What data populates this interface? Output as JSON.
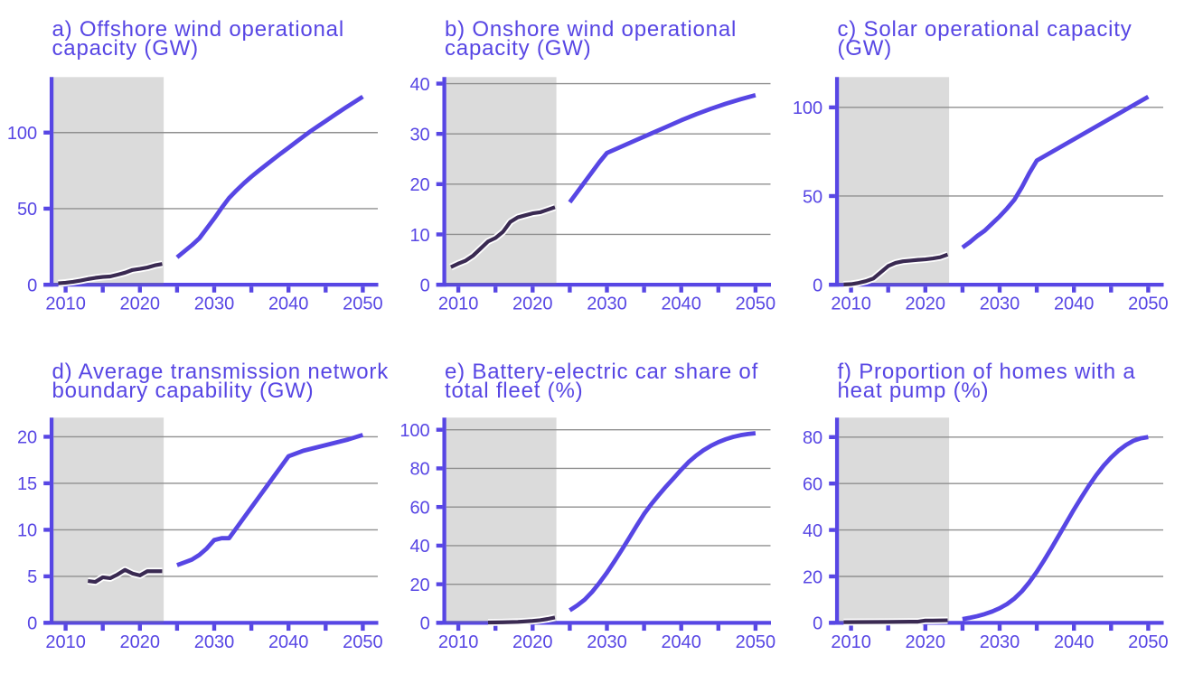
{
  "figure": {
    "background": "#ffffff",
    "description": "Six-panel small-multiples line chart of historical data and future projections, 2010-2050"
  },
  "colors": {
    "accent_purple": "#5746e4",
    "history_line": "#3a2a52",
    "history_casing": "#ffffff",
    "gridline": "#8f8f8f",
    "history_band_grey": "#dcdcdc"
  },
  "chart_data": [
    {
      "id": "a",
      "type": "line",
      "title": "a) Offshore wind operational capacity (GW)",
      "title_line1": "a) Offshore wind operational",
      "title_line2": "capacity (GW)",
      "yticks": [
        0,
        50,
        100
      ],
      "ylim": [
        0,
        136.5
      ],
      "xticks": [
        2010,
        2015,
        2020,
        2025,
        2030,
        2035,
        2040,
        2045,
        2050
      ],
      "xtick_labels": [
        2010,
        2020,
        2030,
        2040,
        2050
      ],
      "xlim": [
        2008.1,
        2052.1
      ],
      "history_band": [
        2008.4,
        2023.2
      ],
      "series": [
        {
          "name": "historical",
          "x": [
            2009,
            2010,
            2011,
            2012,
            2013,
            2014,
            2015,
            2016,
            2017,
            2018,
            2019,
            2020,
            2021,
            2022,
            2023
          ],
          "y": [
            0.9,
            1.3,
            1.9,
            2.7,
            3.7,
            4.5,
            5.1,
            5.4,
            6.6,
            7.9,
            9.7,
            10.4,
            11.3,
            12.7,
            13.6
          ]
        },
        {
          "name": "projection",
          "x": [
            2025,
            2026,
            2027,
            2028,
            2029,
            2030,
            2031,
            2032,
            2033,
            2034,
            2035,
            2036,
            2037,
            2038,
            2039,
            2040,
            2041,
            2042,
            2043,
            2044,
            2045,
            2046,
            2047,
            2048,
            2049,
            2050
          ],
          "y": [
            18,
            22,
            26,
            30.5,
            37,
            43.5,
            50.5,
            57,
            62,
            66.7,
            71,
            75,
            78.8,
            82.6,
            86.4,
            90,
            93.7,
            97.4,
            101,
            104.3,
            107.6,
            110.9,
            114.2,
            117.4,
            120.5,
            123.6
          ]
        }
      ]
    },
    {
      "id": "b",
      "type": "line",
      "title": "b) Onshore wind operational capacity (GW)",
      "title_line1": "b) Onshore wind operational",
      "title_line2": "capacity (GW)",
      "yticks": [
        0,
        10,
        20,
        30,
        40
      ],
      "ylim": [
        0,
        41.3
      ],
      "xticks": [
        2010,
        2015,
        2020,
        2025,
        2030,
        2035,
        2040,
        2045,
        2050
      ],
      "xtick_labels": [
        2010,
        2020,
        2030,
        2040,
        2050
      ],
      "xlim": [
        2008.1,
        2052.1
      ],
      "history_band": [
        2008.4,
        2023.2
      ],
      "series": [
        {
          "name": "historical",
          "x": [
            2009,
            2010,
            2011,
            2012,
            2013,
            2014,
            2015,
            2016,
            2017,
            2018,
            2019,
            2020,
            2021,
            2022,
            2023
          ],
          "y": [
            3.5,
            4.2,
            4.8,
            5.8,
            7.2,
            8.6,
            9.3,
            10.5,
            12.5,
            13.4,
            13.8,
            14.2,
            14.4,
            14.9,
            15.4
          ]
        },
        {
          "name": "projection",
          "x": [
            2025,
            2026,
            2027,
            2028,
            2029,
            2030,
            2032,
            2034,
            2036,
            2038,
            2040,
            2042,
            2044,
            2046,
            2048,
            2050
          ],
          "y": [
            16.4,
            18.4,
            20.4,
            22.4,
            24.4,
            26.2,
            27.5,
            28.8,
            30.1,
            31.4,
            32.7,
            33.9,
            35.0,
            36.0,
            36.9,
            37.7
          ]
        }
      ]
    },
    {
      "id": "c",
      "type": "line",
      "title": "c) Solar operational capacity (GW)",
      "title_line1": "c) Solar operational capacity",
      "title_line2": "(GW)",
      "yticks": [
        0,
        50,
        100
      ],
      "ylim": [
        0,
        117.1
      ],
      "xticks": [
        2010,
        2015,
        2020,
        2025,
        2030,
        2035,
        2040,
        2045,
        2050
      ],
      "xtick_labels": [
        2010,
        2020,
        2030,
        2040,
        2050
      ],
      "xlim": [
        2008.1,
        2052.1
      ],
      "history_band": [
        2008.4,
        2023.2
      ],
      "series": [
        {
          "name": "historical",
          "x": [
            2009,
            2010,
            2011,
            2012,
            2013,
            2014,
            2015,
            2016,
            2017,
            2018,
            2019,
            2020,
            2021,
            2022,
            2023
          ],
          "y": [
            0.1,
            0.3,
            1.0,
            2.0,
            3.5,
            7.0,
            10.5,
            12.3,
            13.2,
            13.6,
            14.0,
            14.3,
            14.8,
            15.5,
            17.0
          ]
        },
        {
          "name": "projection",
          "x": [
            2025,
            2026,
            2027,
            2028,
            2029,
            2030,
            2031,
            2032,
            2033,
            2034,
            2035,
            2038,
            2041,
            2044,
            2047,
            2050
          ],
          "y": [
            21,
            24,
            27.5,
            30.5,
            34.5,
            38.5,
            43,
            48,
            55,
            63,
            70,
            77.2,
            84.4,
            91.6,
            98.8,
            106
          ]
        }
      ]
    },
    {
      "id": "d",
      "type": "line",
      "title": "d) Average transmission network boundary capability (GW)",
      "title_line1": "d) Average transmission network",
      "title_line2": "boundary capability (GW)",
      "yticks": [
        0,
        5,
        10,
        15,
        20
      ],
      "ylim": [
        0,
        22.06
      ],
      "xticks": [
        2010,
        2015,
        2020,
        2025,
        2030,
        2035,
        2040,
        2045,
        2050
      ],
      "xtick_labels": [
        2010,
        2020,
        2030,
        2040,
        2050
      ],
      "xlim": [
        2008.1,
        2052.1
      ],
      "history_band": [
        2008.4,
        2023.2
      ],
      "series": [
        {
          "name": "historical",
          "x": [
            2013,
            2014,
            2015,
            2016,
            2017,
            2018,
            2019,
            2020,
            2021,
            2022,
            2023
          ],
          "y": [
            4.5,
            4.4,
            4.9,
            4.8,
            5.2,
            5.7,
            5.3,
            5.1,
            5.55,
            5.55,
            5.55
          ]
        },
        {
          "name": "projection",
          "x": [
            2025,
            2026,
            2027,
            2028,
            2029,
            2030,
            2031,
            2032,
            2033,
            2034,
            2035,
            2036,
            2037,
            2038,
            2039,
            2040,
            2042,
            2044,
            2046,
            2048,
            2050
          ],
          "y": [
            6.2,
            6.5,
            6.8,
            7.3,
            8.0,
            8.9,
            9.1,
            9.1,
            10.2,
            11.3,
            12.4,
            13.5,
            14.6,
            15.7,
            16.8,
            17.9,
            18.5,
            18.9,
            19.3,
            19.7,
            20.2
          ]
        }
      ]
    },
    {
      "id": "e",
      "type": "line",
      "title": "e) Battery-electric car share of total fleet (%)",
      "title_line1": "e) Battery-electric car share of",
      "title_line2": "total fleet (%)",
      "yticks": [
        0,
        20,
        40,
        60,
        80,
        100
      ],
      "ylim": [
        0,
        106.3
      ],
      "xticks": [
        2010,
        2015,
        2020,
        2025,
        2030,
        2035,
        2040,
        2045,
        2050
      ],
      "xtick_labels": [
        2010,
        2020,
        2030,
        2040,
        2050
      ],
      "xlim": [
        2008.1,
        2052.1
      ],
      "history_band": [
        2008.4,
        2023.2
      ],
      "series": [
        {
          "name": "historical",
          "x": [
            2014,
            2016,
            2018,
            2020,
            2021,
            2022,
            2023
          ],
          "y": [
            0.2,
            0.3,
            0.5,
            1.0,
            1.4,
            2.0,
            2.8
          ]
        },
        {
          "name": "projection",
          "x": [
            2025,
            2026,
            2027,
            2028,
            2029,
            2030,
            2031,
            2032,
            2033,
            2034,
            2035,
            2036,
            2037,
            2038,
            2039,
            2040,
            2041,
            2042,
            2043,
            2044,
            2045,
            2046,
            2047,
            2048,
            2049,
            2050
          ],
          "y": [
            6.5,
            9,
            12,
            16,
            20.8,
            26,
            31.8,
            37.8,
            44,
            50.3,
            56.4,
            61.6,
            66.3,
            70.8,
            75,
            79.3,
            83.3,
            86.6,
            89.4,
            91.7,
            93.6,
            95.1,
            96.3,
            97.2,
            97.8,
            98.2
          ]
        }
      ]
    },
    {
      "id": "f",
      "type": "line",
      "title": "f) Proportion of homes with a heat pump (%)",
      "title_line1": "f) Proportion of homes with a",
      "title_line2": "heat pump (%)",
      "yticks": [
        0,
        20,
        40,
        60,
        80
      ],
      "ylim": [
        0,
        88.4
      ],
      "xticks": [
        2010,
        2015,
        2020,
        2025,
        2030,
        2035,
        2040,
        2045,
        2050
      ],
      "xtick_labels": [
        2010,
        2020,
        2030,
        2040,
        2050
      ],
      "xlim": [
        2008.1,
        2052.1
      ],
      "history_band": [
        2008.4,
        2023.2
      ],
      "series": [
        {
          "name": "historical",
          "x": [
            2009,
            2012,
            2015,
            2018,
            2019,
            2020,
            2021,
            2022,
            2023
          ],
          "y": [
            0.3,
            0.35,
            0.4,
            0.5,
            0.5,
            1.0,
            1.0,
            1.05,
            1.1
          ]
        },
        {
          "name": "projection",
          "x": [
            2025,
            2026,
            2027,
            2028,
            2029,
            2030,
            2031,
            2032,
            2033,
            2034,
            2035,
            2036,
            2037,
            2038,
            2039,
            2040,
            2041,
            2042,
            2043,
            2044,
            2045,
            2046,
            2047,
            2048,
            2049,
            2050
          ],
          "y": [
            1.6,
            2.2,
            2.9,
            3.8,
            4.9,
            6.3,
            8.1,
            10.5,
            13.6,
            17.5,
            22,
            27,
            32.3,
            37.8,
            43.3,
            48.8,
            54,
            59,
            63.6,
            67.7,
            71.2,
            74.2,
            76.6,
            78.4,
            79.5,
            80
          ]
        }
      ]
    }
  ]
}
